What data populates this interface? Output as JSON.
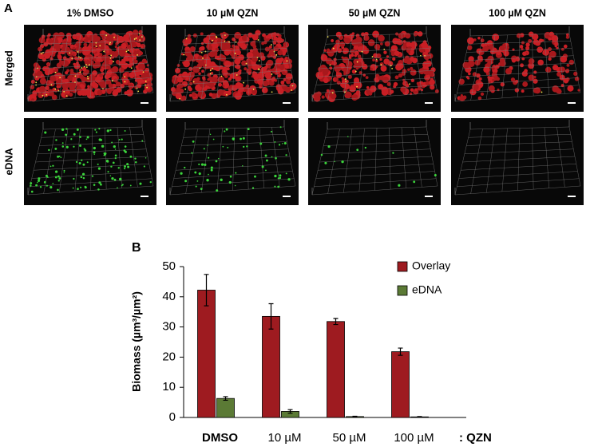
{
  "panel_a": {
    "label": "A",
    "columns": [
      "1% DMSO",
      "10 µM QZN",
      "50 µM QZN",
      "100 µM QZN"
    ],
    "rows": [
      "Merged",
      "eDNA"
    ]
  },
  "chart_data": {
    "type": "bar",
    "label": "B",
    "y_label": "Biomass (µm³/µm²)",
    "categories": [
      "DMSO",
      "10 µM",
      "50 µM",
      "100 µM"
    ],
    "x_suffix": ": QZN",
    "series": [
      {
        "name": "Overlay",
        "color": "#9e1b20",
        "values": [
          42.2,
          33.5,
          31.8,
          21.8
        ],
        "errors": [
          5.2,
          4.2,
          1.0,
          1.2
        ]
      },
      {
        "name": "eDNA",
        "color": "#5b7a35",
        "values": [
          6.3,
          2.0,
          0.3,
          0.2
        ],
        "errors": [
          0.6,
          0.6,
          0.1,
          0.1
        ]
      }
    ],
    "ylim": [
      0,
      50
    ],
    "yticks": [
      0,
      10,
      20,
      30,
      40,
      50
    ],
    "legend": "upper right"
  }
}
